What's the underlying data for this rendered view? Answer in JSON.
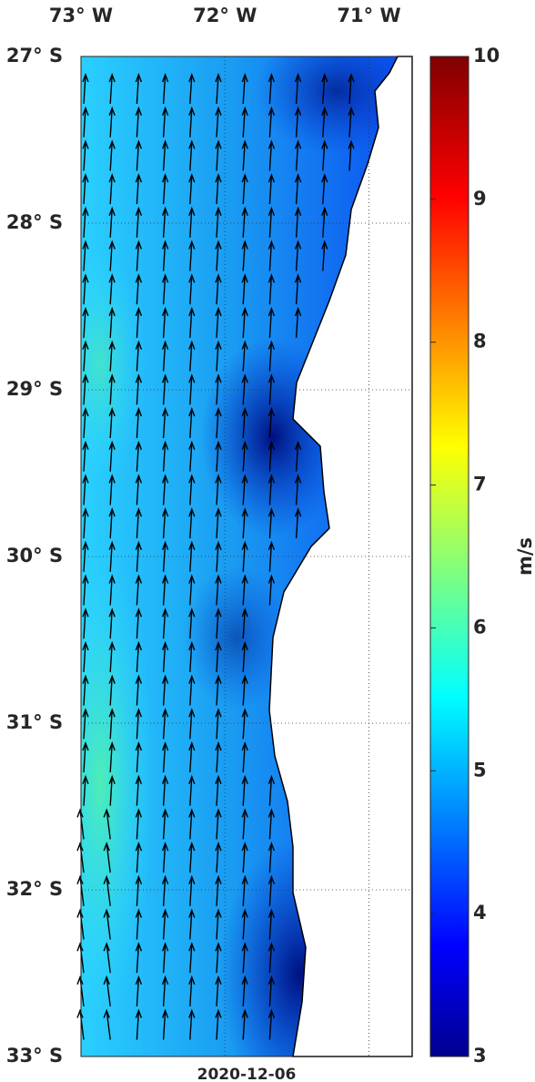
{
  "map": {
    "lon_ticks": [
      {
        "value": -73,
        "label": "73° W"
      },
      {
        "value": -72,
        "label": "72° W"
      },
      {
        "value": -71,
        "label": "71° W"
      }
    ],
    "lat_ticks": [
      {
        "value": -27,
        "label": "27° S"
      },
      {
        "value": -28,
        "label": "28° S"
      },
      {
        "value": -29,
        "label": "29° S"
      },
      {
        "value": -30,
        "label": "30° S"
      },
      {
        "value": -31,
        "label": "31° S"
      },
      {
        "value": -32,
        "label": "32° S"
      },
      {
        "value": -33,
        "label": "33° S"
      }
    ],
    "lonlim": [
      -73.0,
      -70.7
    ],
    "latlim": [
      -33,
      -27
    ],
    "date": "2020-12-06",
    "colorbar": {
      "label": "m/s",
      "lim": [
        3,
        10
      ],
      "ticks": [
        3,
        4,
        5,
        6,
        7,
        8,
        9,
        10
      ]
    }
  }
}
